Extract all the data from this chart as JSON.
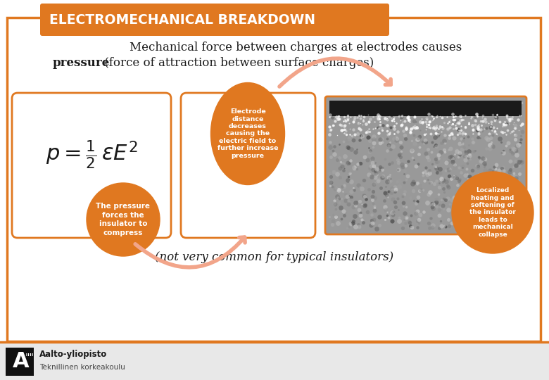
{
  "title": "ELECTROMECHANICAL BREAKDOWN",
  "title_bg": "#E07820",
  "title_color": "#FFFFFF",
  "main_bg": "#FFFFFF",
  "border_color": "#E07820",
  "orange_color": "#E07820",
  "light_orange_arrow": "#F2A58A",
  "subtitle_line1": "Mechanical force between charges at electrodes causes",
  "subtitle_line2_normal": " (force of attraction between surface charges)",
  "subtitle_line2_bold": "pressure",
  "box1_text": "The pressure\nforces the\ninsulator to\ncompress",
  "box2_text": "Electrode\ndistance\ndecreases\ncausing the\nelectric field to\nfurther increase\npressure",
  "box3_text": "Localized\nheating and\nsoftening of\nthe insulator\nleads to\nmechanical\ncollapse",
  "footer_text": "(not very common for typical insulators)",
  "aalto_line1": "Aalto-yliopisto",
  "aalto_line2": "Teknillinen korkeakoulu"
}
